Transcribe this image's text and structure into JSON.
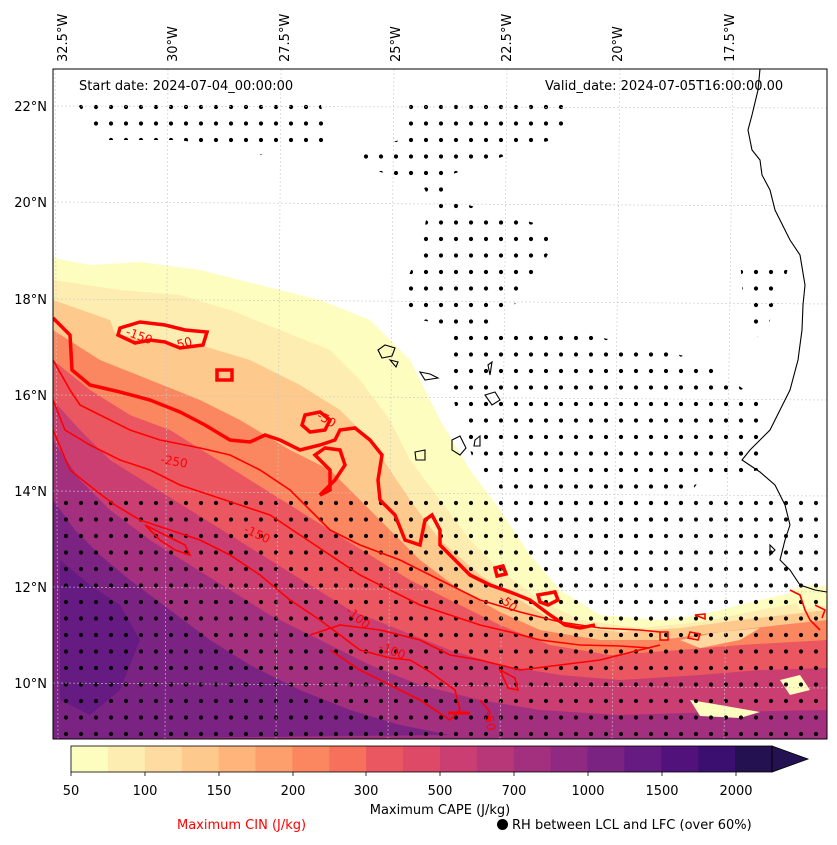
{
  "map": {
    "start_date": "Start date: 2024-07-04_00:00:00",
    "valid_date": "Valid_date: 2024-07-05T16:00:00.00",
    "lon_labels": [
      "32.5°W",
      "30°W",
      "27.5°W",
      "25°W",
      "22.5°W",
      "20°W",
      "17.5°W"
    ],
    "lat_labels": [
      "22°N",
      "20°N",
      "18°N",
      "16°N",
      "14°N",
      "12°N",
      "10°N"
    ],
    "contour_labels": [
      "-150",
      "-50",
      "-50",
      "-250",
      "-150",
      "-100",
      "-100",
      "-50",
      "-50",
      "-100"
    ],
    "fields": {
      "shading": "Maximum CAPE (J/kg)",
      "contours": "Maximum CIN (J/kg)",
      "stippling": "RH between LCL and LFC (over 60%)"
    }
  },
  "colorbar": {
    "label": "Maximum CAPE (J/kg)",
    "ticks": [
      "50",
      "100",
      "150",
      "200",
      "300",
      "500",
      "700",
      "1000",
      "1500",
      "2000"
    ],
    "extend": "max",
    "colors": [
      "#fcfdbf",
      "#feedb0",
      "#fedba1",
      "#fec98d",
      "#feb47b",
      "#fd9f6c",
      "#fb8761",
      "#f6705b",
      "#eb5760",
      "#de4968",
      "#cb3e72",
      "#b73779",
      "#a3307e",
      "#8f2981",
      "#7b2382",
      "#661b82",
      "#51127c",
      "#3b0f70",
      "#231151"
    ]
  },
  "legend": {
    "cin": "Maximum CIN (J/kg)",
    "rh": "RH between LCL and LFC (over 60%)"
  }
}
